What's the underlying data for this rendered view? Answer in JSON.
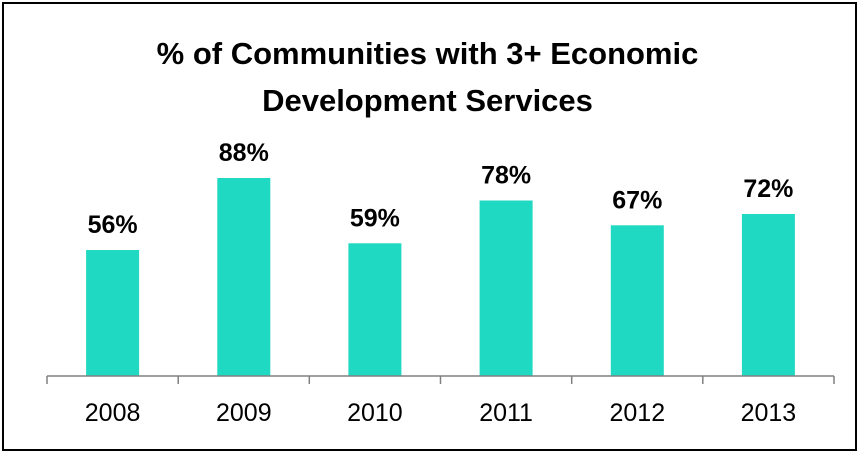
{
  "chart_data": {
    "type": "bar",
    "title_lines": [
      "% of Communities with 3+ Economic",
      "Development Services"
    ],
    "categories": [
      "2008",
      "2009",
      "2010",
      "2011",
      "2012",
      "2013"
    ],
    "values": [
      56,
      88,
      59,
      78,
      67,
      72
    ],
    "data_labels": [
      "56%",
      "88%",
      "59%",
      "78%",
      "67%",
      "72%"
    ],
    "ylim": [
      0,
      100
    ],
    "grid": false,
    "legend": "none",
    "bar_color": "#20d9c2",
    "axis_color": "#808080"
  }
}
